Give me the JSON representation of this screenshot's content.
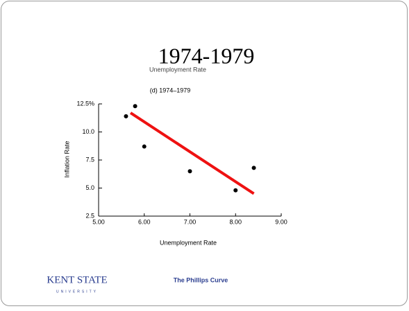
{
  "slide": {
    "title": "1974-1979",
    "footer": "The Phillips Curve",
    "logo": "KENT STATE",
    "logo_sub": "UNIVERSITY"
  },
  "chart_data": {
    "type": "scatter",
    "overlapped_label": "Unemployment Rate",
    "subtitle": "(d) 1974–1979",
    "x_label": "Unemployment Rate",
    "y_label": "Inflation Rate",
    "x": [
      5.6,
      5.8,
      6.0,
      7.0,
      8.0,
      8.4
    ],
    "values": [
      11.4,
      12.3,
      8.7,
      6.5,
      4.8,
      6.8
    ],
    "color": "#000000",
    "trend": {
      "x": [
        5.7,
        8.4
      ],
      "values": [
        11.7,
        4.5
      ],
      "color": "#ee1111"
    },
    "xlim": [
      5,
      9
    ],
    "ylim": [
      2.5,
      12.5
    ],
    "xticks": [
      {
        "value": 5,
        "label": "5.00"
      },
      {
        "value": 6,
        "label": "6.00"
      },
      {
        "value": 7,
        "label": "7.00"
      },
      {
        "value": 8,
        "label": "8.00"
      },
      {
        "value": 9,
        "label": "9.00"
      }
    ],
    "yticks": [
      {
        "value": 2.5,
        "label": "2.5"
      },
      {
        "value": 5,
        "label": "5.0"
      },
      {
        "value": 7.5,
        "label": "7.5"
      },
      {
        "value": 10,
        "label": "10.0"
      },
      {
        "value": 12.5,
        "label": "12.5%"
      }
    ]
  }
}
